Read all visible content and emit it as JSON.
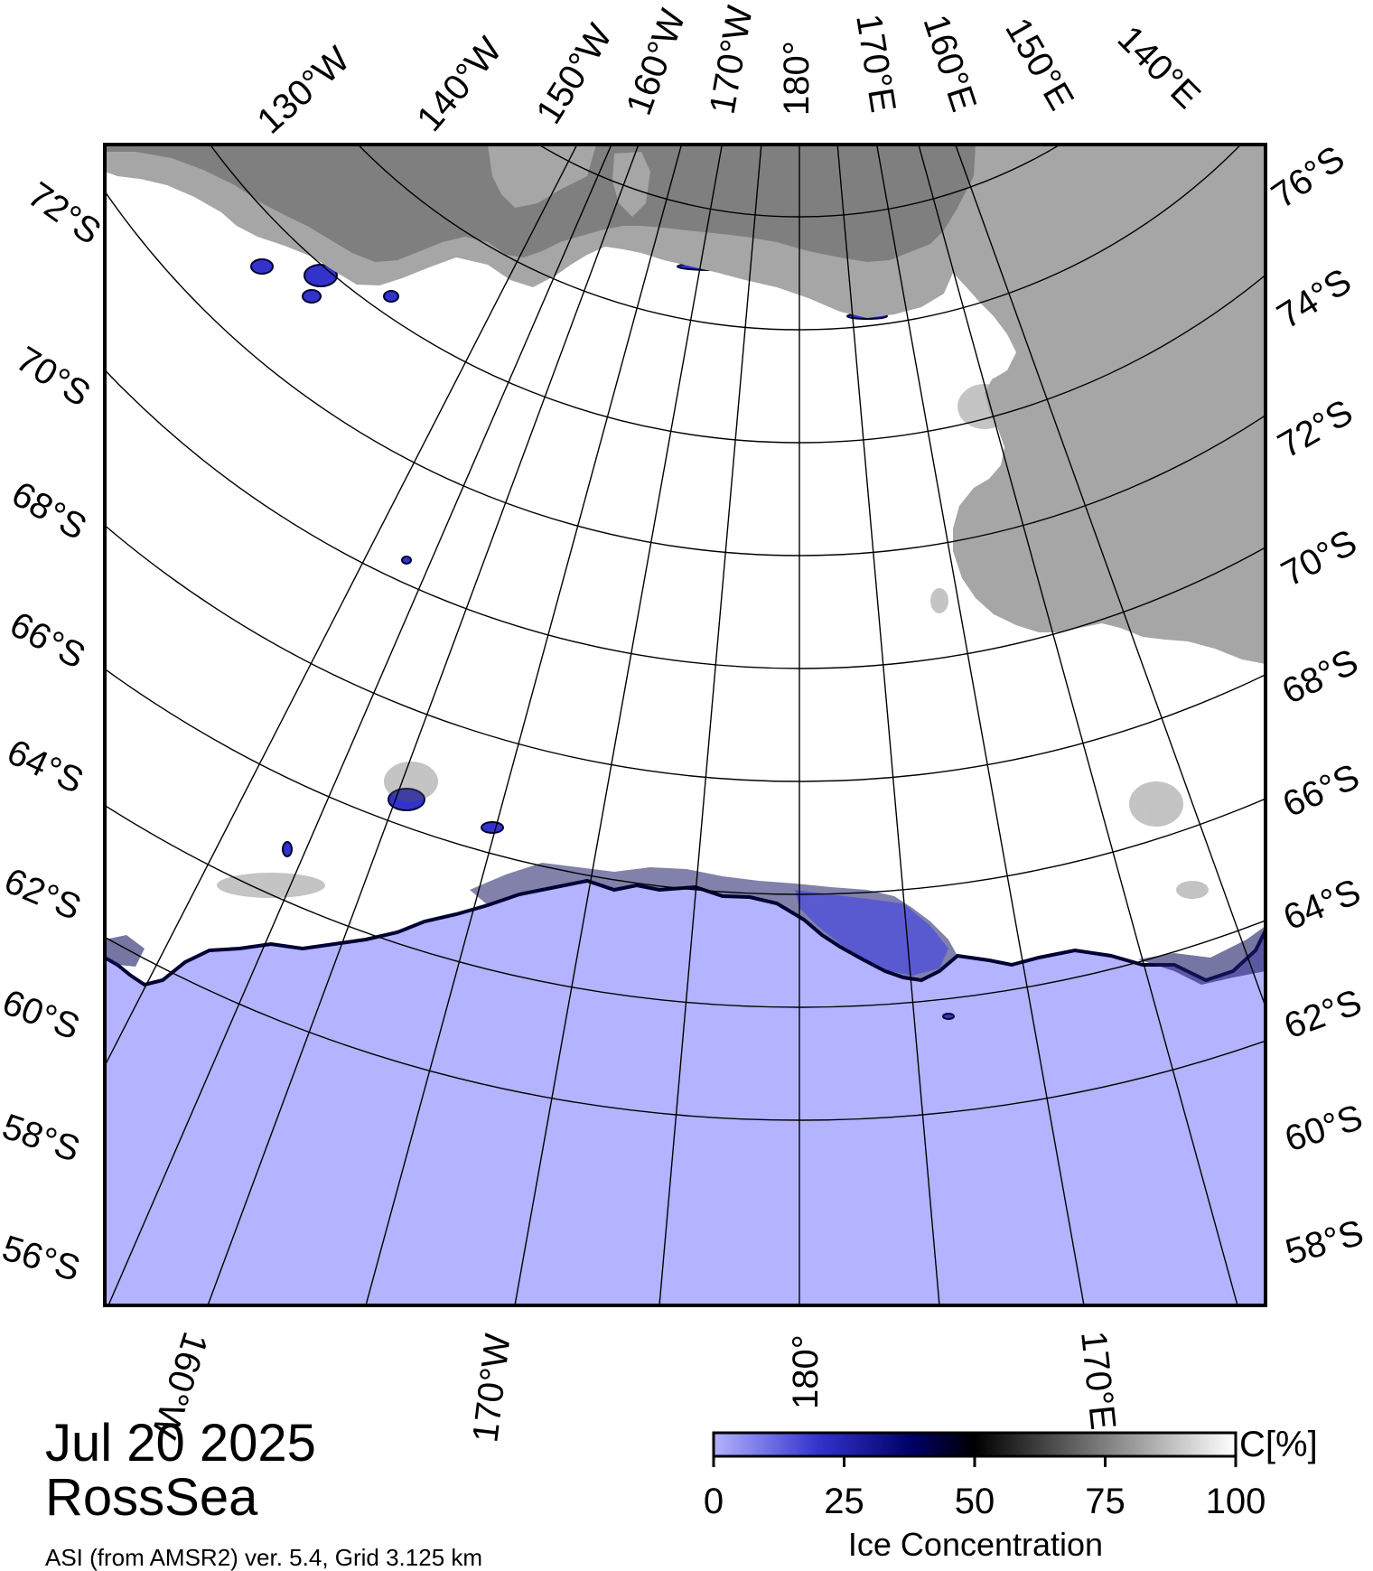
{
  "title": {
    "date": "Jul 20 2025",
    "region": "RossSea",
    "source": "ASI (from AMSR2) ver. 5.4,  Grid 3.125 km"
  },
  "map": {
    "projection": "polar stereographic (south)",
    "central_meridian": "180°",
    "meridian_labels_top": [
      "130°W",
      "140°W",
      "150°W",
      "160°W",
      "170°W",
      "180°",
      "170°E",
      "160°E",
      "150°E",
      "140°E"
    ],
    "meridian_labels_bottom": [
      "160°W",
      "170°W",
      "180°",
      "170°E"
    ],
    "parallel_labels_left": [
      "72°S",
      "70°S",
      "68°S",
      "66°S",
      "64°S",
      "62°S",
      "60°S",
      "58°S",
      "56°S"
    ],
    "parallel_labels_right": [
      "76°S",
      "74°S",
      "72°S",
      "70°S",
      "68°S",
      "66°S",
      "64°S",
      "62°S",
      "60°S",
      "58°S"
    ],
    "colors": {
      "open_water": "#b3b3ff",
      "land": "#a6a6a6",
      "ice_shelf_dark": "#7f7f7f",
      "full_ice": "#ffffff",
      "low_ice": "#3333cc"
    }
  },
  "colorbar": {
    "title": "Ice Concentration",
    "unit": "C[%]",
    "ticks": [
      "0",
      "25",
      "50",
      "75",
      "100"
    ],
    "gradient": [
      "#b3b3ff",
      "#3333cc",
      "#000066",
      "#000000",
      "#7f7f7f",
      "#ffffff"
    ]
  }
}
